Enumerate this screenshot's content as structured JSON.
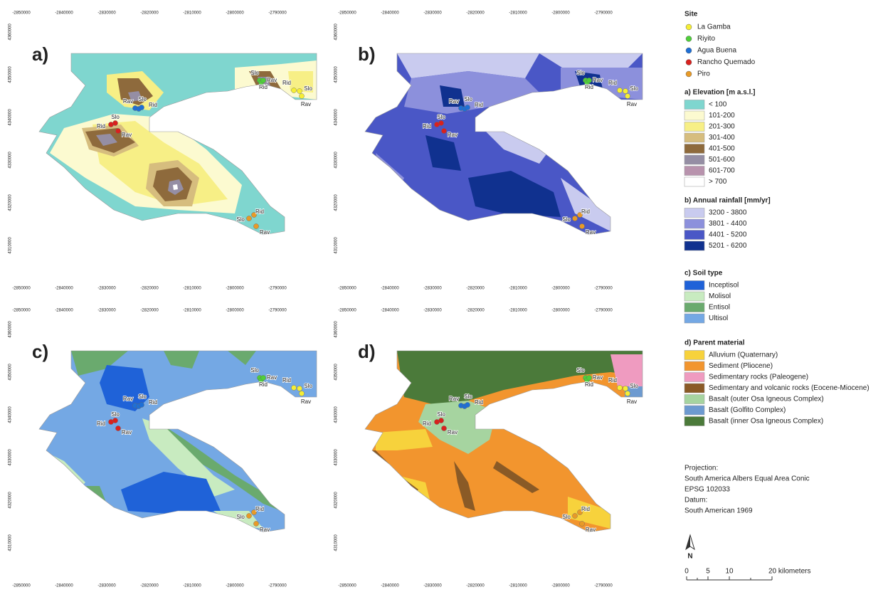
{
  "axes": {
    "x_ticks": [
      -2850000,
      -2840000,
      -2830000,
      -2820000,
      -2810000,
      -2800000,
      -2790000
    ],
    "y_ticks": [
      4310000,
      4320000,
      4330000,
      4340000,
      4350000,
      4360000
    ]
  },
  "panels": [
    {
      "label": "a)",
      "legend": "elevation"
    },
    {
      "label": "b)",
      "legend": "rainfall"
    },
    {
      "label": "c)",
      "legend": "soil"
    },
    {
      "label": "d)",
      "legend": "parent"
    }
  ],
  "site_labels": [
    "Rid",
    "Slo",
    "Rav"
  ],
  "legend": {
    "site": {
      "title": "Site",
      "items": [
        {
          "label": "La Gamba",
          "color": "#f5ee35"
        },
        {
          "label": "Riyito",
          "color": "#4fcf3a"
        },
        {
          "label": "Agua Buena",
          "color": "#1e6fd6"
        },
        {
          "label": "Rancho Quemado",
          "color": "#d9211e"
        },
        {
          "label": "Piro",
          "color": "#e89a27"
        }
      ]
    },
    "elevation": {
      "title": "a) Elevation [m a.s.l.]",
      "items": [
        {
          "label": "< 100",
          "color": "#7fd6cf"
        },
        {
          "label": "101-200",
          "color": "#fcfad0"
        },
        {
          "label": "201-300",
          "color": "#f7ef86"
        },
        {
          "label": "301-400",
          "color": "#d6bd7e"
        },
        {
          "label": "401-500",
          "color": "#8e6a3c"
        },
        {
          "label": "501-600",
          "color": "#958ea4"
        },
        {
          "label": "601-700",
          "color": "#b893ad"
        },
        {
          "label": "> 700",
          "color": "#ffffff"
        }
      ]
    },
    "rainfall": {
      "title": "b) Annual rainfall [mm/yr]",
      "items": [
        {
          "label": "3200 - 3800",
          "color": "#c9cbef"
        },
        {
          "label": "3801 - 4400",
          "color": "#8c90dc"
        },
        {
          "label": "4401 - 5200",
          "color": "#4a57c6"
        },
        {
          "label": "5201 - 6200",
          "color": "#10318f"
        }
      ]
    },
    "soil": {
      "title": "c) Soil type",
      "items": [
        {
          "label": "Inceptisol",
          "color": "#1f62d8"
        },
        {
          "label": "Molisol",
          "color": "#c8ebc0"
        },
        {
          "label": "Entisol",
          "color": "#6aaa6e"
        },
        {
          "label": "Ultisol",
          "color": "#74a8e4"
        }
      ]
    },
    "parent": {
      "title": "d) Parent material",
      "items": [
        {
          "label": "Alluvium (Quaternary)",
          "color": "#f7d23c"
        },
        {
          "label": "Sediment (Pliocene)",
          "color": "#f2952e"
        },
        {
          "label": "Sedimentary rocks (Paleogene)",
          "color": "#ef9bc0"
        },
        {
          "label": "Sedimentary and volcanic rocks (Eocene-Miocene)",
          "color": "#8a5a26"
        },
        {
          "label": "Basalt (outer Osa Igneous Complex)",
          "color": "#a6d4a0"
        },
        {
          "label": "Basalt (Golfito Complex)",
          "color": "#6d9ad0"
        },
        {
          "label": "Basalt (inner Osa Igneous Complex)",
          "color": "#4b7a3a"
        }
      ]
    }
  },
  "projection": [
    "Projection:",
    "South America Albers Equal Area Conic",
    "EPSG 102033",
    "Datum:",
    "South American 1969"
  ],
  "north": "N",
  "scale": [
    "0",
    "5",
    "10",
    "20 kilometers"
  ]
}
